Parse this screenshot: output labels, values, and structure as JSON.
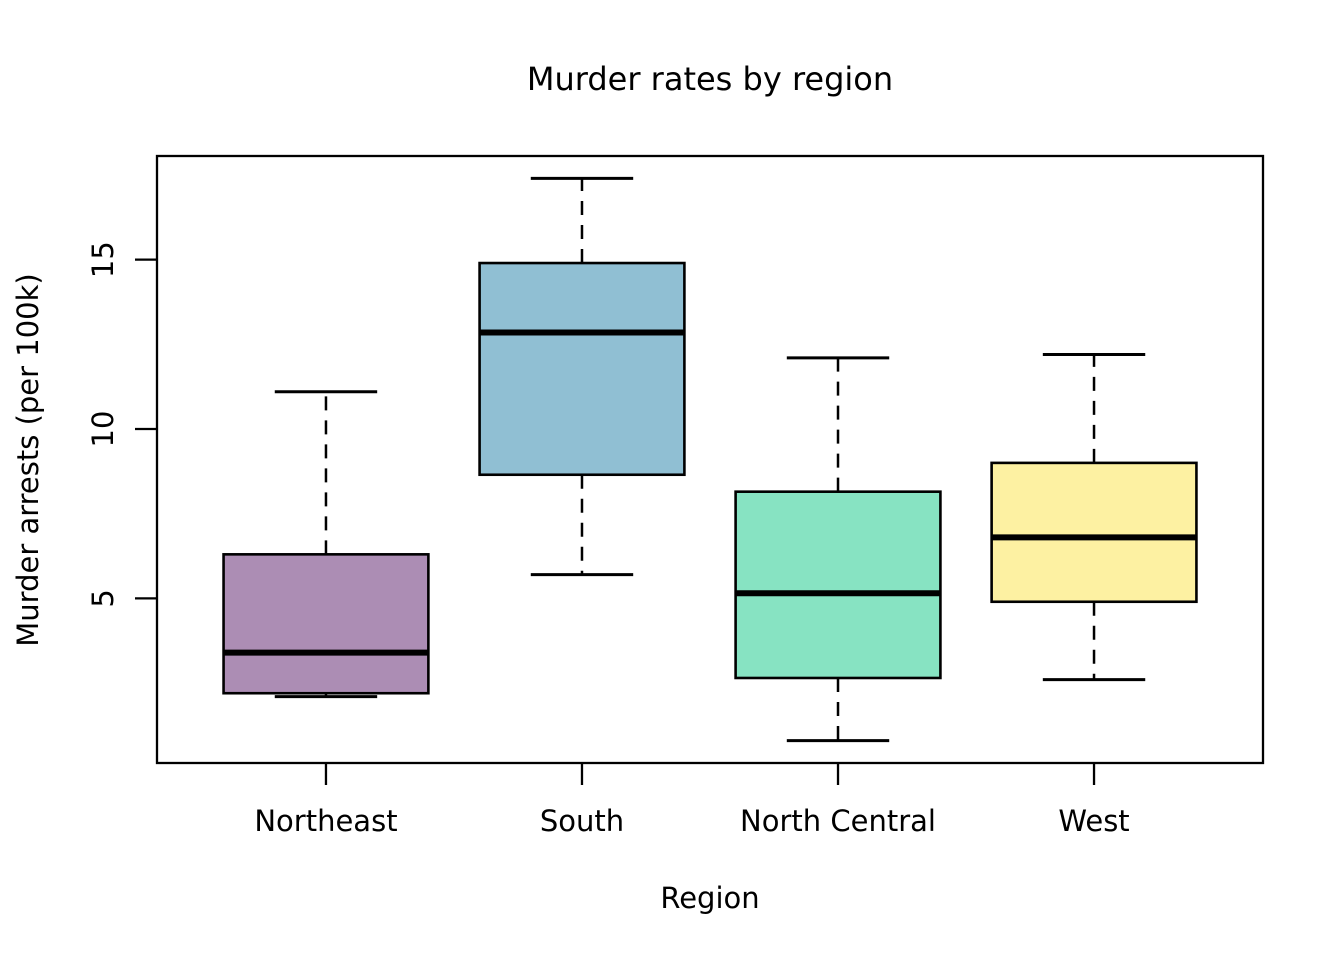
{
  "page": {
    "background": "#ffffff"
  },
  "chart_data": {
    "type": "boxplot",
    "title": "Murder rates by region",
    "xlabel": "Region",
    "ylabel": "Murder arrests (per 100k)",
    "categories": [
      "Northeast",
      "South",
      "North Central",
      "West"
    ],
    "series": [
      {
        "name": "Northeast",
        "whisker_low": 2.1,
        "q1": 2.2,
        "median": 3.4,
        "q3": 6.3,
        "whisker_high": 11.1,
        "fill": "#AC8DB4"
      },
      {
        "name": "South",
        "whisker_low": 5.7,
        "q1": 8.65,
        "median": 12.85,
        "q3": 14.9,
        "whisker_high": 17.4,
        "fill": "#90BFD3"
      },
      {
        "name": "North Central",
        "whisker_low": 0.8,
        "q1": 2.65,
        "median": 5.15,
        "q3": 8.15,
        "whisker_high": 12.1,
        "fill": "#87E3C2"
      },
      {
        "name": "West",
        "whisker_low": 2.6,
        "q1": 4.9,
        "median": 6.8,
        "q3": 9.0,
        "whisker_high": 12.2,
        "fill": "#FDF1A2"
      }
    ],
    "yticks": [
      5,
      10,
      15
    ],
    "ylim": [
      0.14,
      18.06
    ],
    "xlim": [
      0.34,
      4.66
    ],
    "grid": false,
    "legend_position": "none",
    "axis_color": "#000000",
    "box_border_color": "#000000",
    "median_color": "#000000",
    "whisker_style": "dashed"
  }
}
